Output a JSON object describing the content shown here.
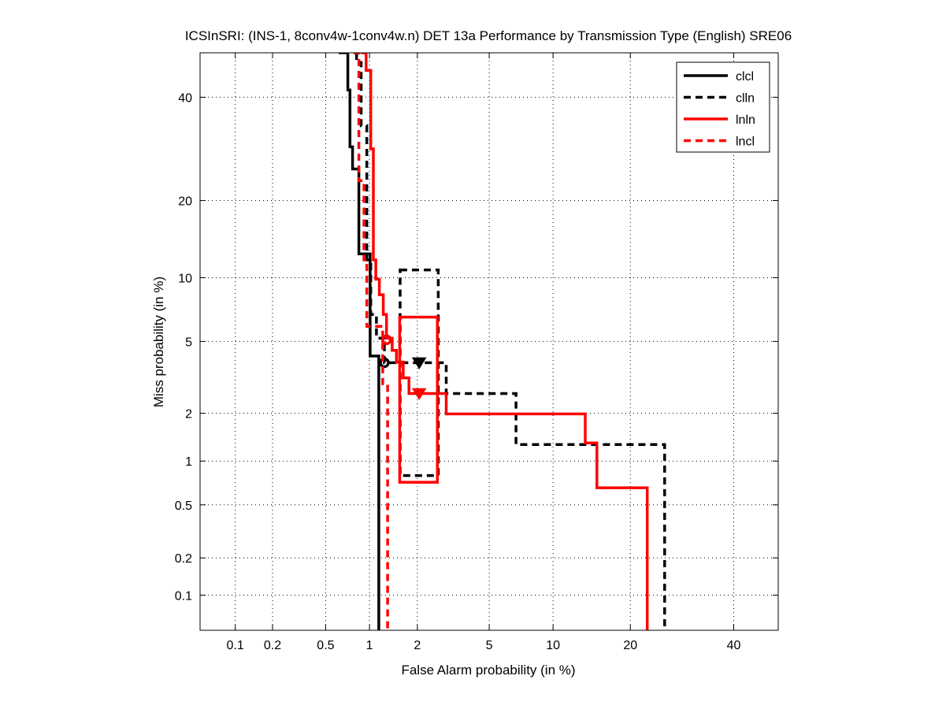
{
  "chart_data": {
    "type": "line",
    "scale": "normal-deviate (DET)",
    "title": "ICSInSRI: (INS-1, 8conv4w-1conv4w.n) DET 13a Performance by Transmission Type (English) SRE06",
    "xlabel": "False Alarm probability (in %)",
    "ylabel": "Miss probability (in %)",
    "xlim": [
      0.05,
      50
    ],
    "ylim": [
      0.05,
      50
    ],
    "grid": true,
    "legend_position": "top-right",
    "xticks": [
      0.1,
      0.2,
      0.5,
      1,
      2,
      5,
      10,
      20,
      40
    ],
    "xtick_labels": [
      "0.1",
      "0.2",
      "0.5",
      "1",
      "2",
      "5",
      "10",
      "20",
      "40"
    ],
    "yticks": [
      0.1,
      0.2,
      0.5,
      1,
      2,
      5,
      10,
      20,
      40
    ],
    "ytick_labels": [
      "0.1",
      "0.2",
      "0.5",
      "1",
      "2",
      "5",
      "10",
      "20",
      "40"
    ],
    "series": [
      {
        "name": "clcl",
        "color": "#000000",
        "dash": false,
        "points": [
          [
            0.62,
            50
          ],
          [
            0.715,
            50
          ],
          [
            0.715,
            41.6
          ],
          [
            0.74,
            41.6
          ],
          [
            0.74,
            29.6
          ],
          [
            0.77,
            29.6
          ],
          [
            0.77,
            25.4
          ],
          [
            0.85,
            25.4
          ],
          [
            0.85,
            12.6
          ],
          [
            1.01,
            12.6
          ],
          [
            1.01,
            4.2
          ],
          [
            1.15,
            4.2
          ],
          [
            1.15,
            0.05
          ]
        ],
        "marker": {
          "shape": "circle",
          "x": 1.25,
          "y": 3.87
        }
      },
      {
        "name": "clln",
        "color": "#000000",
        "dash": true,
        "points": [
          [
            0.82,
            50
          ],
          [
            0.82,
            47.8
          ],
          [
            0.88,
            47.8
          ],
          [
            0.88,
            33.9
          ],
          [
            0.96,
            33.9
          ],
          [
            0.96,
            11.9
          ],
          [
            1.02,
            11.9
          ],
          [
            1.02,
            6.8
          ],
          [
            1.11,
            6.8
          ],
          [
            1.11,
            5.2
          ],
          [
            1.25,
            5.2
          ],
          [
            1.25,
            3.87
          ],
          [
            2.94,
            3.87
          ],
          [
            2.94,
            2.61
          ],
          [
            6.78,
            2.61
          ],
          [
            6.78,
            1.28
          ],
          [
            25.9,
            1.28
          ],
          [
            25.9,
            0.05
          ]
        ],
        "marker": {
          "shape": "triangle-down",
          "x": 2.05,
          "y": 3.87
        },
        "confidence_box": {
          "x": [
            1.57,
            2.65
          ],
          "y": [
            0.8,
            10.8
          ]
        }
      },
      {
        "name": "lnln",
        "color": "#ff0000",
        "dash": false,
        "points": [
          [
            0.88,
            50
          ],
          [
            0.95,
            50
          ],
          [
            0.95,
            46.0
          ],
          [
            1.02,
            46.0
          ],
          [
            1.02,
            29.2
          ],
          [
            1.06,
            29.2
          ],
          [
            1.06,
            11.9
          ],
          [
            1.1,
            11.9
          ],
          [
            1.1,
            9.85
          ],
          [
            1.16,
            9.85
          ],
          [
            1.16,
            8.4
          ],
          [
            1.23,
            8.4
          ],
          [
            1.23,
            6.8
          ],
          [
            1.29,
            6.8
          ],
          [
            1.29,
            5.2
          ],
          [
            1.4,
            5.2
          ],
          [
            1.4,
            4.5
          ],
          [
            1.49,
            4.5
          ],
          [
            1.49,
            3.9
          ],
          [
            1.64,
            3.9
          ],
          [
            1.64,
            3.2
          ],
          [
            1.78,
            3.2
          ],
          [
            1.78,
            2.61
          ],
          [
            2.94,
            2.61
          ],
          [
            2.94,
            1.98
          ],
          [
            13.6,
            1.98
          ],
          [
            13.6,
            1.31
          ],
          [
            15.1,
            1.31
          ],
          [
            15.1,
            0.66
          ],
          [
            22.8,
            0.66
          ],
          [
            22.8,
            0.05
          ]
        ],
        "marker": {
          "shape": "triangle-down",
          "x": 2.05,
          "y": 2.61
        },
        "confidence_box": {
          "x": [
            1.56,
            2.62
          ],
          "y": [
            0.72,
            6.6
          ]
        }
      },
      {
        "name": "lncl",
        "color": "#ff0000",
        "dash": true,
        "points": [
          [
            0.78,
            50
          ],
          [
            0.85,
            50
          ],
          [
            0.85,
            23.3
          ],
          [
            0.92,
            23.3
          ],
          [
            0.92,
            11.9
          ],
          [
            0.96,
            11.9
          ],
          [
            0.96,
            5.95
          ],
          [
            1.22,
            5.95
          ],
          [
            1.22,
            2.96
          ],
          [
            1.31,
            2.96
          ],
          [
            1.31,
            0.05
          ]
        ],
        "marker": {
          "shape": "circle",
          "x": 1.29,
          "y": 5.1
        }
      }
    ]
  }
}
